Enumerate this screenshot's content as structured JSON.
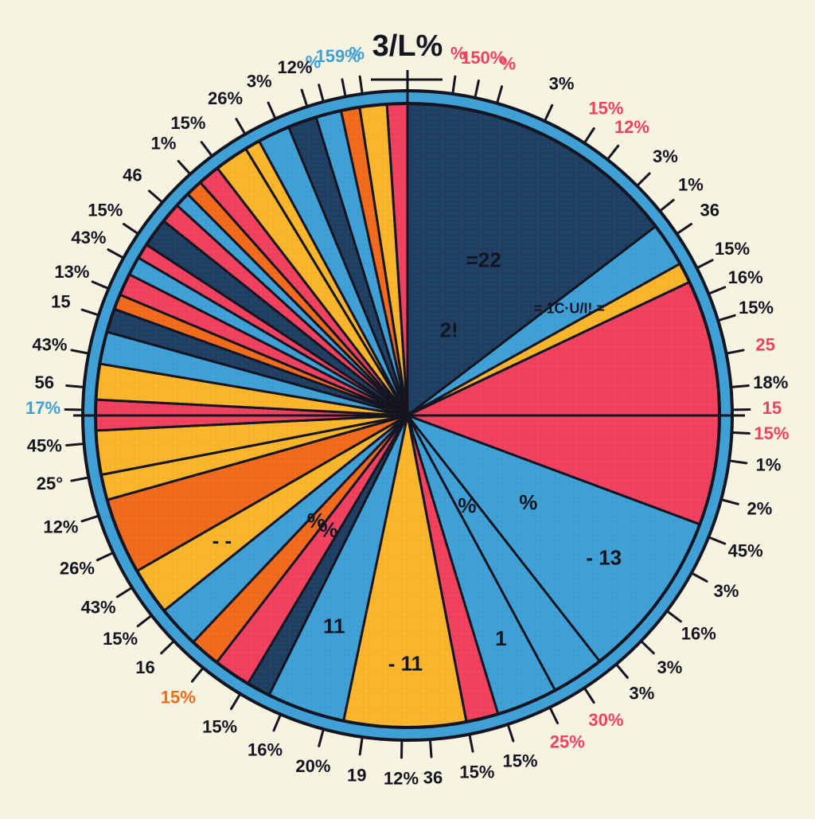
{
  "chart_data": {
    "type": "pie",
    "title": "3/L%",
    "legend": "none",
    "palette": {
      "navy": "#1f3f63",
      "blue": "#3fa0d6",
      "red": "#f2415e",
      "orange": "#f26a1b",
      "yellow": "#fbb52b",
      "ink": "#141521",
      "paper": "#f6f3e1"
    },
    "segment_colors": [
      "navy",
      "blue",
      "yellow",
      "red",
      "blue",
      "blue",
      "blue",
      "red",
      "yellow",
      "blue",
      "navy",
      "red",
      "orange",
      "blue",
      "yellow",
      "orange",
      "yellow",
      "yellow",
      "red",
      "yellow",
      "blue",
      "navy",
      "orange",
      "red",
      "blue",
      "red",
      "navy",
      "red",
      "blue",
      "orange",
      "red",
      "yellow",
      "yellow",
      "blue",
      "navy",
      "blue",
      "orange",
      "yellow",
      "red"
    ],
    "segment_values": [
      16.7,
      2.6,
      1.2,
      14.5,
      10.0,
      3.1,
      3.6,
      1.9,
      7.2,
      4.6,
      1.4,
      2.2,
      1.8,
      2.5,
      2.8,
      4.5,
      1.5,
      2.6,
      1.8,
      2.1,
      1.9,
      1.4,
      0.9,
      1.3,
      1.1,
      0.9,
      1.7,
      1.2,
      0.9,
      1.0,
      1.3,
      2.0,
      0.9,
      1.9,
      1.7,
      1.5,
      1.1,
      1.6,
      1.2
    ],
    "inner_labels": [
      {
        "text": "=22",
        "seg": 0,
        "r": 0.55
      },
      {
        "text": "2!",
        "seg": 0,
        "r": 0.3
      },
      {
        "text": "= 1C·U/I! =",
        "seg": 1,
        "r": 0.62
      },
      {
        "text": "- 13",
        "seg": 4,
        "r": 0.78
      },
      {
        "text": "1",
        "seg": 6,
        "r": 0.78
      },
      {
        "text": "- 11",
        "seg": 8,
        "r": 0.8
      },
      {
        "text": "11",
        "seg": 9,
        "r": 0.72
      },
      {
        "text": "%",
        "seg": 11,
        "r": 0.45
      },
      {
        "text": "%",
        "seg": 12,
        "r": 0.45
      },
      {
        "text": "- -",
        "seg": 14,
        "r": 0.72
      },
      {
        "text": "%",
        "seg": 5,
        "r": 0.35
      },
      {
        "text": "%",
        "seg": 4,
        "r": 0.48
      }
    ],
    "outer_labels": [
      {
        "text": "159%",
        "angle": -11,
        "color": "blue"
      },
      {
        "text": "%",
        "angle": -15,
        "color": "blue"
      },
      {
        "text": "%",
        "angle": -8,
        "color": "blue"
      },
      {
        "text": "150%",
        "angle": 12,
        "color": "red"
      },
      {
        "text": "%",
        "angle": 8,
        "color": "red"
      },
      {
        "text": "%",
        "angle": 16,
        "color": "red"
      },
      {
        "text": "3%",
        "angle": 25,
        "color": "ink"
      },
      {
        "text": "15%",
        "angle": 33,
        "color": "red"
      },
      {
        "text": "12%",
        "angle": 38,
        "color": "red"
      },
      {
        "text": "3%",
        "angle": 45,
        "color": "ink"
      },
      {
        "text": "1%",
        "angle": 51,
        "color": "ink"
      },
      {
        "text": "36",
        "angle": 56,
        "color": "ink"
      },
      {
        "text": "15%",
        "angle": 63,
        "color": "ink"
      },
      {
        "text": "16%",
        "angle": 68,
        "color": "ink"
      },
      {
        "text": "15%",
        "angle": 73,
        "color": "ink"
      },
      {
        "text": "25",
        "angle": 79,
        "color": "red"
      },
      {
        "text": "18%",
        "angle": 85,
        "color": "ink"
      },
      {
        "text": "15",
        "angle": 89,
        "color": "red"
      },
      {
        "text": "15%",
        "angle": 93,
        "color": "red"
      },
      {
        "text": "1%",
        "angle": 98,
        "color": "ink"
      },
      {
        "text": "2%",
        "angle": 105,
        "color": "ink"
      },
      {
        "text": "45%",
        "angle": 112,
        "color": "ink"
      },
      {
        "text": "3%",
        "angle": 119,
        "color": "ink"
      },
      {
        "text": "16%",
        "angle": 127,
        "color": "ink"
      },
      {
        "text": "3%",
        "angle": 134,
        "color": "ink"
      },
      {
        "text": "3%",
        "angle": 140,
        "color": "ink"
      },
      {
        "text": "30%",
        "angle": 147,
        "color": "red"
      },
      {
        "text": "25%",
        "angle": 154,
        "color": "red"
      },
      {
        "text": "15%",
        "angle": 162,
        "color": "ink"
      },
      {
        "text": "15%",
        "angle": 169,
        "color": "ink"
      },
      {
        "text": "36",
        "angle": 176,
        "color": "ink"
      },
      {
        "text": "12%",
        "angle": 181,
        "color": "ink"
      },
      {
        "text": "19",
        "angle": 188,
        "color": "ink"
      },
      {
        "text": "20%",
        "angle": 195,
        "color": "ink"
      },
      {
        "text": "16%",
        "angle": 203,
        "color": "ink"
      },
      {
        "text": "15%",
        "angle": 211,
        "color": "ink"
      },
      {
        "text": "15%",
        "angle": 219,
        "color": "orange"
      },
      {
        "text": "16",
        "angle": 226,
        "color": "ink"
      },
      {
        "text": "15%",
        "angle": 232,
        "color": "ink"
      },
      {
        "text": "43%",
        "angle": 238,
        "color": "ink"
      },
      {
        "text": "26%",
        "angle": 245,
        "color": "ink"
      },
      {
        "text": "12%",
        "angle": 252,
        "color": "ink"
      },
      {
        "text": "25°",
        "angle": 259,
        "color": "ink"
      },
      {
        "text": "45%",
        "angle": 265,
        "color": "ink"
      },
      {
        "text": "17%",
        "angle": 271,
        "color": "blue"
      },
      {
        "text": "56",
        "angle": 275,
        "color": "ink"
      },
      {
        "text": "43%",
        "angle": 281,
        "color": "ink"
      },
      {
        "text": "15",
        "angle": 288,
        "color": "ink"
      },
      {
        "text": "13%",
        "angle": 293,
        "color": "ink"
      },
      {
        "text": "43%",
        "angle": 299,
        "color": "ink"
      },
      {
        "text": "15%",
        "angle": 304,
        "color": "ink"
      },
      {
        "text": "46",
        "angle": 311,
        "color": "ink"
      },
      {
        "text": "1%",
        "angle": 318,
        "color": "ink"
      },
      {
        "text": "15%",
        "angle": 323,
        "color": "ink"
      },
      {
        "text": "26%",
        "angle": 330,
        "color": "ink"
      },
      {
        "text": "3%",
        "angle": 336,
        "color": "ink"
      },
      {
        "text": "12%",
        "angle": 342,
        "color": "ink"
      }
    ]
  }
}
